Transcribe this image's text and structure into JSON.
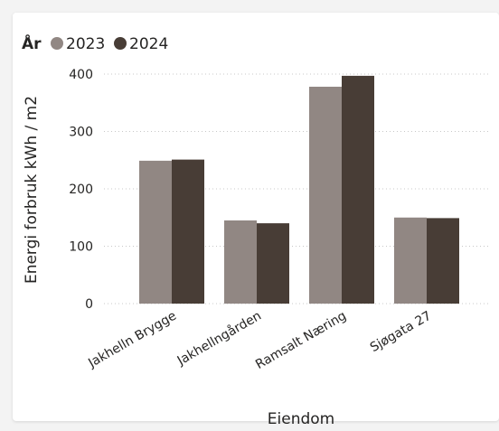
{
  "chart_data": {
    "type": "bar",
    "title": "",
    "xlabel": "Eiendom",
    "ylabel": "Energi forbruk kWh / m2",
    "categories": [
      "Jakhelln Brygge",
      "Jakhellngården",
      "Ramsalt Næring",
      "Sjøgata 27"
    ],
    "series": [
      {
        "name": "2023",
        "color": "#918783",
        "values": [
          249,
          145,
          378,
          150
        ]
      },
      {
        "name": "2024",
        "color": "#483d36",
        "values": [
          251,
          140,
          397,
          149
        ]
      }
    ],
    "ylim": [
      0,
      400
    ],
    "yticks": [
      0,
      100,
      200,
      300,
      400
    ],
    "grid": true,
    "legend": {
      "title": "År",
      "placement": "top-left"
    }
  }
}
